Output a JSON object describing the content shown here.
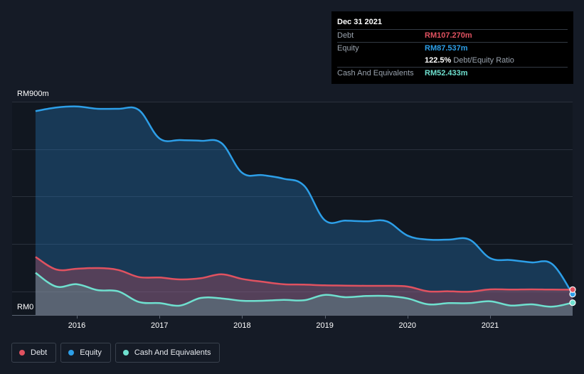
{
  "tooltip": {
    "date": "Dec 31 2021",
    "rows": [
      {
        "label": "Debt",
        "value": "RM107.270m",
        "color": "#e05260"
      },
      {
        "label": "Equity",
        "value": "RM87.537m",
        "color": "#2d9fe8"
      },
      {
        "label": "",
        "value": "122.5%",
        "suffix": "Debt/Equity Ratio",
        "color": "#ffffff"
      },
      {
        "label": "Cash And Equivalents",
        "value": "RM52.433m",
        "color": "#6fe0cf"
      }
    ]
  },
  "legend": [
    {
      "label": "Debt",
      "color": "#e05260"
    },
    {
      "label": "Equity",
      "color": "#2d9fe8"
    },
    {
      "label": "Cash And Equivalents",
      "color": "#6fe0cf"
    }
  ],
  "chart_data": {
    "type": "area",
    "ylim": [
      0,
      900
    ],
    "y_tick_labels": [
      "RM0",
      "RM900m"
    ],
    "x_tick_labels": [
      "2016",
      "2017",
      "2018",
      "2019",
      "2020",
      "2021"
    ],
    "grid": true,
    "legend_position": "bottom-left",
    "x": [
      2015.5,
      2015.75,
      2016.0,
      2016.25,
      2016.5,
      2016.75,
      2017.0,
      2017.25,
      2017.5,
      2017.75,
      2018.0,
      2018.25,
      2018.5,
      2018.75,
      2019.0,
      2019.25,
      2019.5,
      2019.75,
      2020.0,
      2020.25,
      2020.5,
      2020.75,
      2021.0,
      2021.25,
      2021.5,
      2021.75,
      2022.0
    ],
    "series": [
      {
        "name": "Equity",
        "color": "#2d9fe8",
        "values": [
          860,
          875,
          880,
          870,
          870,
          865,
          745,
          738,
          735,
          725,
          600,
          590,
          575,
          545,
          400,
          398,
          395,
          395,
          335,
          318,
          318,
          318,
          240,
          232,
          222,
          215,
          88
        ]
      },
      {
        "name": "Debt",
        "color": "#e05260",
        "values": [
          245,
          192,
          195,
          198,
          190,
          160,
          158,
          150,
          155,
          172,
          152,
          140,
          130,
          128,
          125,
          124,
          123,
          123,
          120,
          100,
          100,
          98,
          108,
          107,
          108,
          107,
          107
        ]
      },
      {
        "name": "Cash And Equivalents",
        "color": "#6fe0cf",
        "values": [
          178,
          120,
          130,
          105,
          100,
          55,
          50,
          40,
          72,
          70,
          60,
          60,
          64,
          62,
          85,
          75,
          80,
          80,
          70,
          45,
          50,
          50,
          58,
          40,
          45,
          35,
          52
        ]
      }
    ]
  }
}
